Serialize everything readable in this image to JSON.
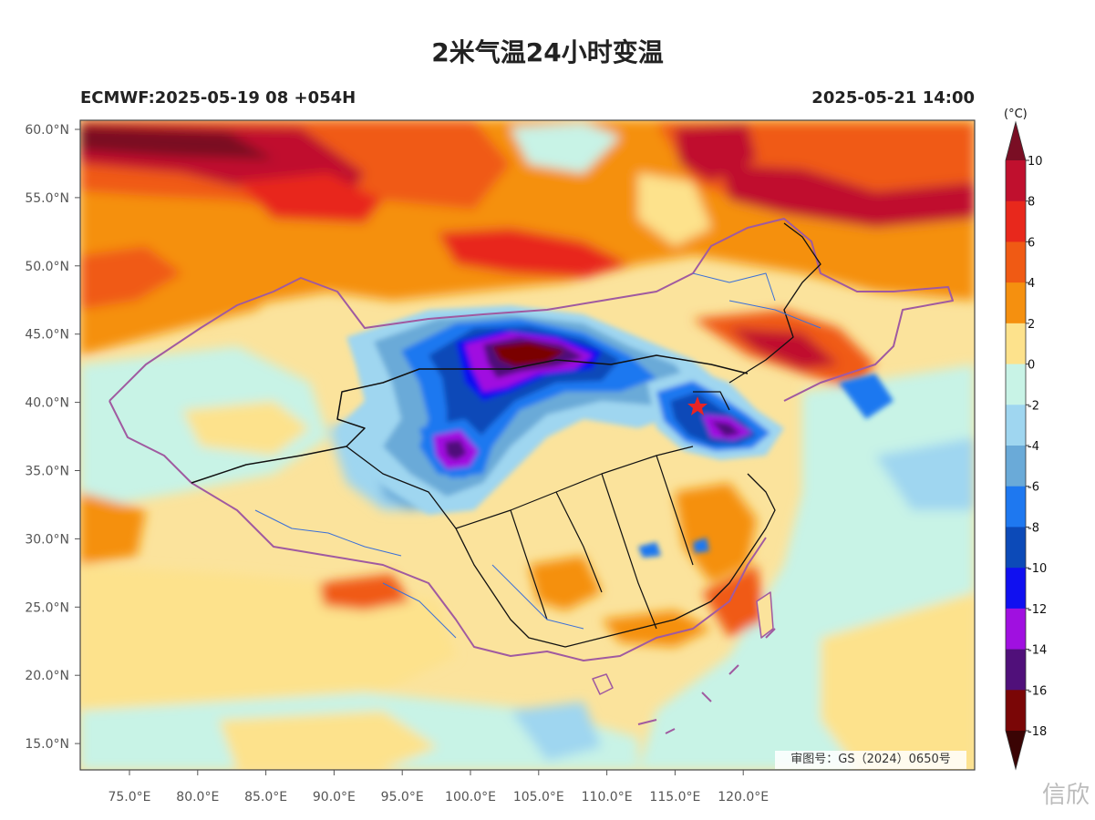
{
  "title": "2米气温24小时变温",
  "subtitle_left": "ECMWF:2025-05-19 08 +054H",
  "subtitle_right": "2025-05-21 14:00",
  "colorbar": {
    "unit": "(°C)",
    "levels": [
      "10",
      "8",
      "6",
      "4",
      "2",
      "0",
      "-2",
      "-4",
      "-6",
      "-8",
      "-10",
      "-12",
      "-14",
      "-16",
      "-18"
    ],
    "colors": [
      "#7a0e24",
      "#c0102e",
      "#e8281c",
      "#f05a14",
      "#f5900f",
      "#fde28c",
      "#c8f3e6",
      "#9fd6f0",
      "#6aaad8",
      "#1e78f0",
      "#0c4ab8",
      "#1010f0",
      "#a010e0",
      "#50107a",
      "#7a0606",
      "#3a0404"
    ]
  },
  "axes": {
    "lat_labels": [
      "60.0°N",
      "55.0°N",
      "50.0°N",
      "45.0°N",
      "40.0°N",
      "35.0°N",
      "30.0°N",
      "25.0°N",
      "20.0°N",
      "15.0°N"
    ],
    "lon_labels": [
      "75.0°E",
      "80.0°E",
      "85.0°E",
      "90.0°E",
      "95.0°E",
      "100.0°E",
      "105.0°E",
      "110.0°E",
      "115.0°E",
      "120.0°E"
    ]
  },
  "approval_text": "审图号：GS（2024）0650号",
  "watermark_text": "信欣"
}
